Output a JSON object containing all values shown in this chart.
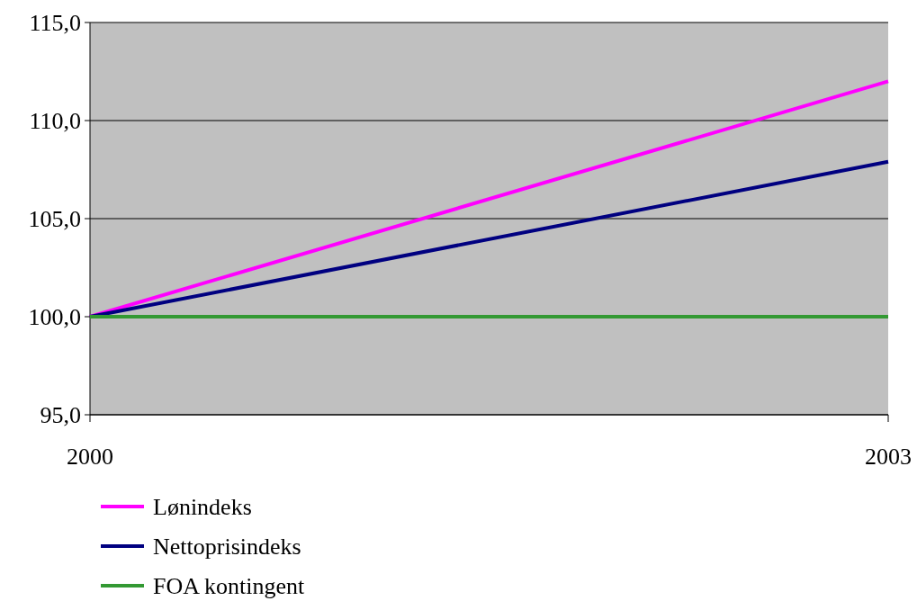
{
  "chart_data": {
    "type": "line",
    "x": [
      2000,
      2003
    ],
    "xlim": [
      2000,
      2003
    ],
    "xticks": [
      2000,
      2003
    ],
    "ylim": [
      95,
      115
    ],
    "yticks": [
      {
        "value": 95,
        "label": "95,0"
      },
      {
        "value": 100,
        "label": "100,0"
      },
      {
        "value": 105,
        "label": "105,0"
      },
      {
        "value": 110,
        "label": "110,0"
      },
      {
        "value": 115,
        "label": "115,0"
      }
    ],
    "grid": "y",
    "legend": "bottom",
    "marker": "none",
    "line_style": "solid",
    "series": [
      {
        "name": "Lønindeks",
        "color": "#ff00ff",
        "values": [
          100,
          112.0
        ]
      },
      {
        "name": "Nettoprisindeks",
        "color": "#000080",
        "values": [
          100,
          107.9
        ]
      },
      {
        "name": "FOA kontingent",
        "color": "#339933",
        "values": [
          100,
          100
        ]
      }
    ]
  }
}
